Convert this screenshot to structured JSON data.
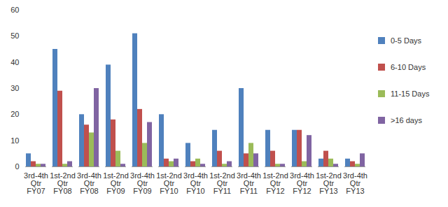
{
  "chart_data": {
    "type": "bar",
    "categories": [
      "3rd-4th Qtr FY07",
      "1st-2nd Qtr FY08",
      "3rd-4th Qtr FY08",
      "1st-2nd Qtr FY09",
      "3rd-4th Qtr FY09",
      "1st-2nd Qtr FY10",
      "3rd-4th Qtr FY10",
      "1st-2nd Qtr FY11",
      "3rd-4th Qtr FY11",
      "1st-2nd Qtr FY12",
      "3rd-4th Qtr FY12",
      "1st-2nd Qtr FY13",
      "3rd-4th Qtr FY13"
    ],
    "series": [
      {
        "name": "0-5 Days",
        "color": "#4f81bd",
        "values": [
          5,
          45,
          20,
          39,
          51,
          20,
          9,
          14,
          30,
          14,
          14,
          3,
          3
        ]
      },
      {
        "name": "6-10 Days",
        "color": "#c0504d",
        "values": [
          2,
          29,
          16,
          18,
          22,
          3,
          2,
          6,
          5,
          6,
          14,
          6,
          2
        ]
      },
      {
        "name": "11-15 Days",
        "color": "#9bbb59",
        "values": [
          1,
          1,
          13,
          6,
          9,
          2,
          3,
          1,
          9,
          1,
          2,
          3,
          1
        ]
      },
      {
        "name": ">16 days",
        "color": "#8064a2",
        "values": [
          1,
          2,
          30,
          1,
          17,
          3,
          1,
          2,
          5,
          1,
          12,
          1,
          5
        ]
      }
    ],
    "ylim": [
      0,
      60
    ],
    "yticks": [
      0,
      10,
      20,
      30,
      40,
      50,
      60
    ],
    "grid": false,
    "legend": "right"
  }
}
